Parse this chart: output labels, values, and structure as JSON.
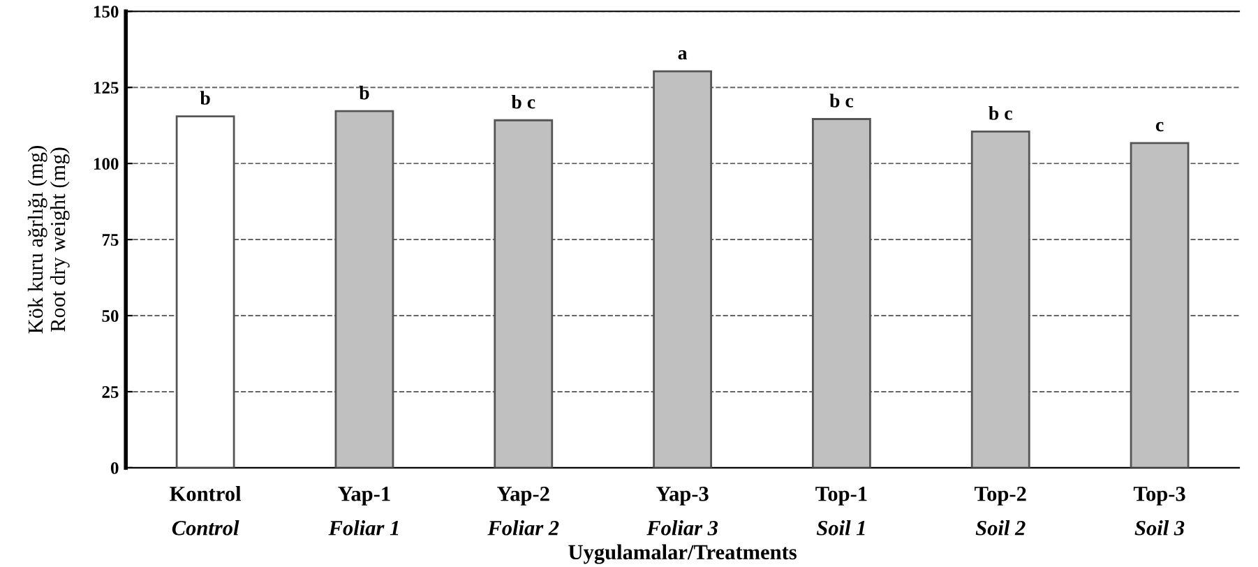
{
  "chart_data": {
    "type": "bar",
    "categories": [
      "Kontrol\nControl",
      "Yap-1\nFoliar 1",
      "Yap-2\nFoliar 2",
      "Yap-3\nFoliar 3",
      "Top-1\nSoil 1",
      "Top-2\nSoil 2",
      "Top-3\nSoil 3"
    ],
    "values": [
      115.5,
      117.2,
      114.2,
      130.3,
      114.6,
      110.5,
      106.7
    ],
    "colors": [
      "#ffffff",
      "#c0c0c0",
      "#c0c0c0",
      "#c0c0c0",
      "#c0c0c0",
      "#c0c0c0",
      "#c0c0c0"
    ],
    "value_labels": [
      "b",
      "b",
      "b c",
      "a",
      "b c",
      "b c",
      "c"
    ],
    "xlabel": "Uygulamalar/Treatments",
    "ylabel": "Kök kuru ağrlığı (mg)\nRoot dry weight (mg)",
    "ylim": [
      0,
      150
    ],
    "yticks": [
      0,
      25,
      50,
      75,
      100,
      125,
      150
    ],
    "grid": "y",
    "line_style": "dashed"
  }
}
